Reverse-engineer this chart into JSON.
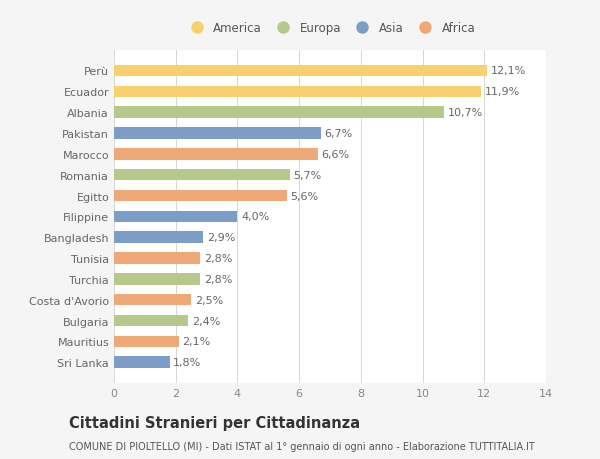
{
  "categories": [
    "Perù",
    "Ecuador",
    "Albania",
    "Pakistan",
    "Marocco",
    "Romania",
    "Egitto",
    "Filippine",
    "Bangladesh",
    "Tunisia",
    "Turchia",
    "Costa d'Avorio",
    "Bulgaria",
    "Mauritius",
    "Sri Lanka"
  ],
  "values": [
    12.1,
    11.9,
    10.7,
    6.7,
    6.6,
    5.7,
    5.6,
    4.0,
    2.9,
    2.8,
    2.8,
    2.5,
    2.4,
    2.1,
    1.8
  ],
  "labels": [
    "12,1%",
    "11,9%",
    "10,7%",
    "6,7%",
    "6,6%",
    "5,7%",
    "5,6%",
    "4,0%",
    "2,9%",
    "2,8%",
    "2,8%",
    "2,5%",
    "2,4%",
    "2,1%",
    "1,8%"
  ],
  "colors": [
    "#f9d070",
    "#f9d070",
    "#b5c98a",
    "#7b9dc8",
    "#f0a878",
    "#b5c98a",
    "#f0a878",
    "#7b9dc8",
    "#7b9dc8",
    "#f0a878",
    "#b5c98a",
    "#f0a878",
    "#b5c98a",
    "#f0a878",
    "#7b9dc8"
  ],
  "legend_labels": [
    "America",
    "Europa",
    "Asia",
    "Africa"
  ],
  "legend_colors": [
    "#f9d070",
    "#b5c98a",
    "#7b9dc8",
    "#f0a878"
  ],
  "xlim": [
    0,
    14
  ],
  "xticks": [
    0,
    2,
    4,
    6,
    8,
    10,
    12,
    14
  ],
  "title": "Cittadini Stranieri per Cittadinanza",
  "subtitle": "COMUNE DI PIOLTELLO (MI) - Dati ISTAT al 1° gennaio di ogni anno - Elaborazione TUTTITALIA.IT",
  "bg_color": "#f5f5f5",
  "bar_bg_color": "#ffffff",
  "grid_color": "#d0d0d0",
  "label_color": "#666666",
  "ytick_color": "#666666",
  "xtick_color": "#888888",
  "label_fontsize": 8.0,
  "tick_fontsize": 8.0,
  "title_fontsize": 10.5,
  "subtitle_fontsize": 7.0,
  "bar_height": 0.55
}
